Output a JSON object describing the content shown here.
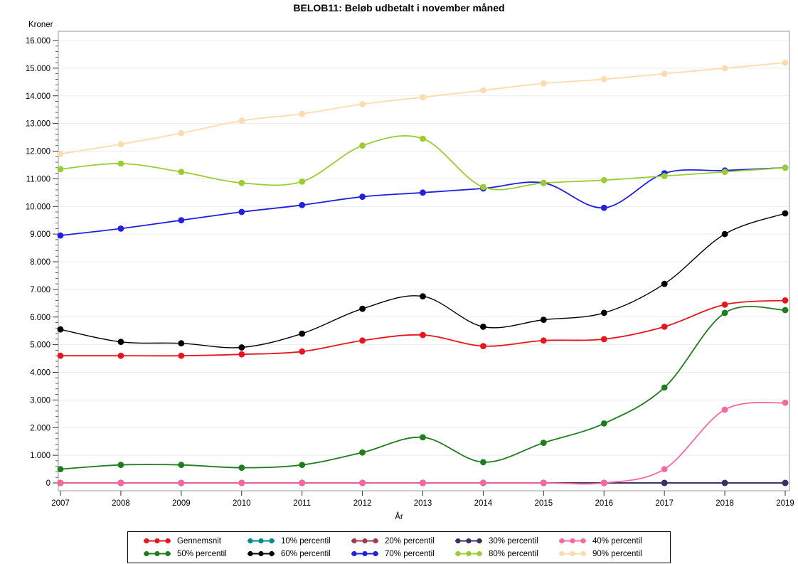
{
  "chart_data": {
    "type": "line",
    "title": "BELOB11: Beløb udbetalt i november måned",
    "xlabel": "År",
    "ylabel": "Kroner",
    "x": [
      2007,
      2008,
      2009,
      2010,
      2011,
      2012,
      2013,
      2014,
      2015,
      2016,
      2017,
      2018,
      2019
    ],
    "x_tick_labels": [
      "2007",
      "2008",
      "2009",
      "2010",
      "2011",
      "2012",
      "2013",
      "2014",
      "2015",
      "2016",
      "2017",
      "2018",
      "2019"
    ],
    "y_ticks": [
      0,
      1000,
      2000,
      3000,
      4000,
      5000,
      6000,
      7000,
      8000,
      9000,
      10000,
      11000,
      12000,
      13000,
      14000,
      15000,
      16000
    ],
    "y_tick_labels": [
      "0",
      "1.000",
      "2.000",
      "3.000",
      "4.000",
      "5.000",
      "6.000",
      "7.000",
      "8.000",
      "9.000",
      "10.000",
      "11.000",
      "12.000",
      "13.000",
      "14.000",
      "15.000",
      "16.000"
    ],
    "ylim": [
      0,
      16000
    ],
    "y_major_step": 1000,
    "y_minor_step": 200,
    "grid": "horizontal-light",
    "legend_position": "bottom",
    "colors": {
      "grid": "#ececec",
      "frame": "#999999",
      "tick": "#333333"
    },
    "series": [
      {
        "name": "Gennemsnit",
        "color": "#e8151e",
        "values": [
          4600,
          4600,
          4600,
          4650,
          4750,
          5150,
          5350,
          4950,
          5150,
          5200,
          5650,
          6450,
          6600
        ]
      },
      {
        "name": "10% percentil",
        "color": "#008b8b",
        "values": [
          0,
          0,
          0,
          0,
          0,
          0,
          0,
          0,
          0,
          0,
          0,
          0,
          0
        ]
      },
      {
        "name": "20% percentil",
        "color": "#a23b4c",
        "values": [
          0,
          0,
          0,
          0,
          0,
          0,
          0,
          0,
          0,
          0,
          0,
          0,
          0
        ]
      },
      {
        "name": "30% percentil",
        "color": "#333366",
        "values": [
          0,
          0,
          0,
          0,
          0,
          0,
          0,
          0,
          0,
          0,
          0,
          0,
          0
        ]
      },
      {
        "name": "40% percentil",
        "color": "#f768a1",
        "values": [
          0,
          0,
          0,
          0,
          0,
          0,
          0,
          0,
          0,
          0,
          500,
          2650,
          2900
        ]
      },
      {
        "name": "50% percentil",
        "color": "#1e7d1e",
        "values": [
          500,
          650,
          650,
          550,
          650,
          1100,
          1650,
          750,
          1450,
          2150,
          3450,
          6150,
          6250
        ]
      },
      {
        "name": "60% percentil",
        "color": "#000000",
        "values": [
          5550,
          5100,
          5050,
          4900,
          5400,
          6300,
          6750,
          5650,
          5900,
          6150,
          7200,
          9000,
          9750
        ]
      },
      {
        "name": "70% percentil",
        "color": "#2020dd",
        "values": [
          8950,
          9200,
          9500,
          9800,
          10050,
          10350,
          10500,
          10650,
          10850,
          9950,
          11200,
          11300,
          11400
        ]
      },
      {
        "name": "80% percentil",
        "color": "#9acd32",
        "values": [
          11350,
          11550,
          11250,
          10850,
          10900,
          12200,
          12450,
          10700,
          10850,
          10950,
          11100,
          11250,
          11400
        ]
      },
      {
        "name": "90% percentil",
        "color": "#fbdcae",
        "values": [
          11900,
          12250,
          12650,
          13100,
          13350,
          13700,
          13950,
          14200,
          14450,
          14600,
          14800,
          15000,
          15200
        ]
      }
    ]
  }
}
